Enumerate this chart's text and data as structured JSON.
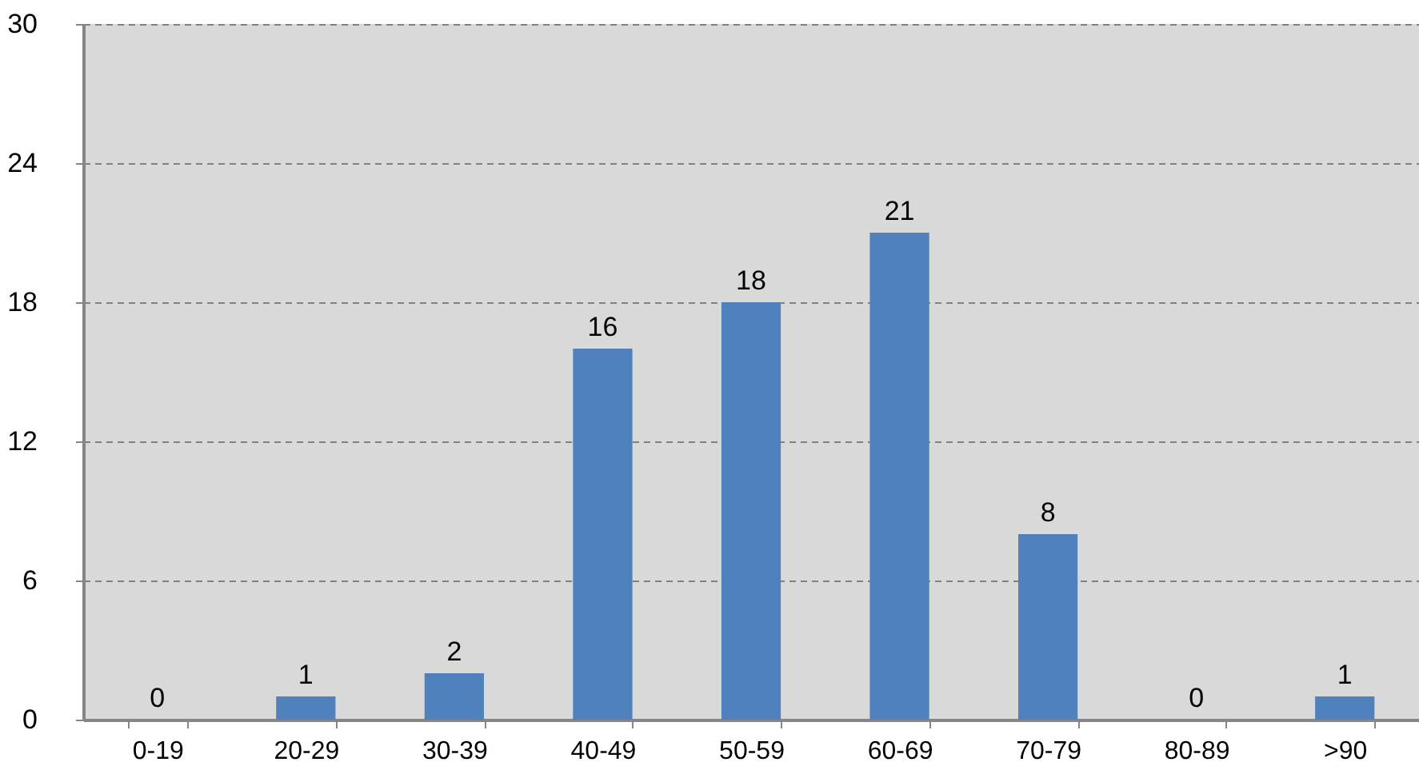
{
  "chart_data": {
    "type": "bar",
    "categories": [
      "0-19",
      "20-29",
      "30-39",
      "40-49",
      "50-59",
      "60-69",
      "70-79",
      "80-89",
      ">90"
    ],
    "values": [
      0,
      1,
      2,
      16,
      18,
      21,
      8,
      0,
      1
    ],
    "color": "#4f81bd",
    "ylim": [
      0,
      30
    ],
    "yticks": [
      0,
      6,
      12,
      18,
      24,
      30
    ],
    "grid": "y",
    "data_labels": true
  }
}
